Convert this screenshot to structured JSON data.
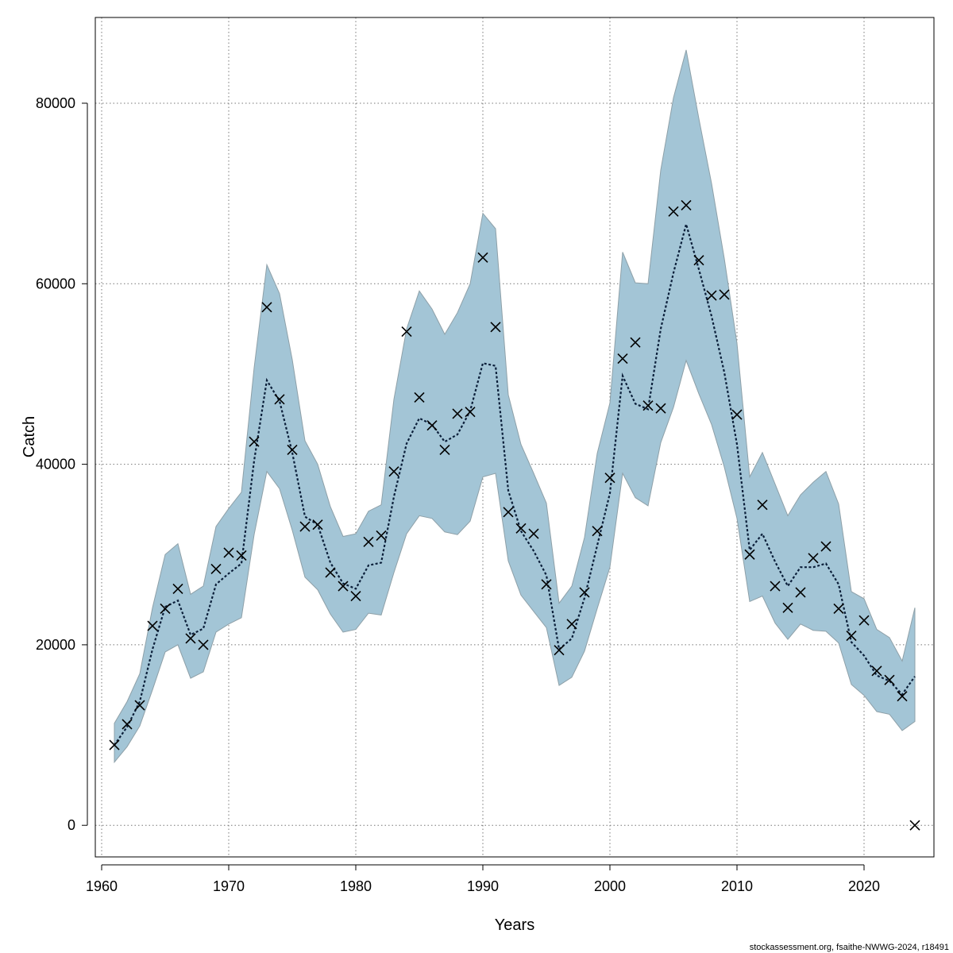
{
  "chart_data": {
    "type": "line",
    "title": "",
    "xlabel": "Years",
    "ylabel": "Catch",
    "xlim": [
      1959.5,
      2025.5
    ],
    "ylim": [
      -3500,
      89500
    ],
    "xticks": [
      1960,
      1970,
      1980,
      1990,
      2000,
      2010,
      2020
    ],
    "yticks": [
      0,
      20000,
      40000,
      60000,
      80000
    ],
    "grid": true,
    "legend": "none",
    "colors": {
      "band": "#a3c5d6",
      "band_edge": "#8ea0a8",
      "line": "#0b1f3a",
      "points": "#000000",
      "grid": "#777777"
    },
    "years": [
      1961,
      1962,
      1963,
      1964,
      1965,
      1966,
      1967,
      1968,
      1969,
      1970,
      1971,
      1972,
      1973,
      1974,
      1975,
      1976,
      1977,
      1978,
      1979,
      1980,
      1981,
      1982,
      1983,
      1984,
      1985,
      1986,
      1987,
      1988,
      1989,
      1990,
      1991,
      1992,
      1993,
      1994,
      1995,
      1996,
      1997,
      1998,
      1999,
      2000,
      2001,
      2002,
      2003,
      2004,
      2005,
      2006,
      2007,
      2008,
      2009,
      2010,
      2011,
      2012,
      2013,
      2014,
      2015,
      2016,
      2017,
      2018,
      2019,
      2020,
      2021,
      2022,
      2023,
      2024
    ],
    "series": [
      {
        "type": "area",
        "lower": [
          7000,
          8700,
          11000,
          15000,
          19200,
          20000,
          16300,
          17000,
          21400,
          22300,
          23000,
          32200,
          39200,
          37300,
          32700,
          27500,
          26100,
          23400,
          21400,
          21700,
          23500,
          23300,
          28000,
          32300,
          34300,
          34000,
          32500,
          32200,
          33700,
          38600,
          39000,
          29300,
          25500,
          23700,
          21900,
          15500,
          16400,
          19300,
          24000,
          28600,
          39000,
          36300,
          35400,
          42400,
          46300,
          51500,
          47800,
          44400,
          39700,
          34000,
          24800,
          25400,
          22400,
          20600,
          22300,
          21600,
          21500,
          20200,
          15600,
          14400,
          12600,
          12300,
          10500,
          11500
        ],
        "upper": [
          11300,
          13700,
          16800,
          24100,
          30000,
          31200,
          25600,
          26500,
          33100,
          35100,
          36900,
          50700,
          62100,
          58900,
          51600,
          42600,
          40000,
          35300,
          32000,
          32300,
          34800,
          35500,
          47200,
          55000,
          59200,
          57200,
          54400,
          56800,
          60000,
          67800,
          66100,
          47700,
          42200,
          39000,
          35700,
          24600,
          26500,
          31900,
          41200,
          46800,
          63500,
          60100,
          60000,
          72600,
          80600,
          85900,
          78300,
          71100,
          62800,
          53400,
          38600,
          41300,
          37800,
          34300,
          36600,
          38000,
          39200,
          35600,
          25900,
          25100,
          21700,
          20800,
          18200,
          24100
        ]
      },
      {
        "type": "line",
        "values": [
          8900,
          10900,
          13700,
          19500,
          24200,
          24900,
          21100,
          21800,
          26700,
          27900,
          29000,
          40400,
          49300,
          47000,
          41300,
          34200,
          33300,
          29100,
          26800,
          26200,
          28800,
          29100,
          36400,
          42300,
          45100,
          44400,
          42500,
          43300,
          45900,
          51200,
          50900,
          37100,
          32600,
          30400,
          27700,
          19500,
          20700,
          25200,
          31000,
          36800,
          49800,
          46700,
          46100,
          55000,
          61200,
          66600,
          61600,
          56400,
          50200,
          42200,
          30500,
          32300,
          29200,
          26500,
          28600,
          28600,
          29000,
          26700,
          20300,
          18800,
          16600,
          16000,
          14500,
          16500
        ]
      },
      {
        "type": "scatter",
        "marker": "x",
        "values": [
          8900,
          11200,
          13300,
          22100,
          24000,
          26200,
          20700,
          20000,
          28400,
          30200,
          29900,
          42500,
          57400,
          47200,
          41600,
          33100,
          33300,
          28000,
          26500,
          25400,
          31400,
          32100,
          39200,
          54700,
          47400,
          44300,
          41600,
          45600,
          45800,
          62900,
          55200,
          34700,
          32900,
          32300,
          26700,
          19400,
          22300,
          25800,
          32600,
          38500,
          51700,
          53500,
          46500,
          46200,
          68000,
          68700,
          62600,
          58700,
          58800,
          45500,
          30000,
          35500,
          26500,
          24100,
          25800,
          29600,
          30900,
          24000,
          21000,
          22700,
          17100,
          16100,
          14300,
          0
        ]
      }
    ]
  },
  "footer": {
    "text": "stockassessment.org, fsaithe-NWWG-2024, r18491"
  }
}
